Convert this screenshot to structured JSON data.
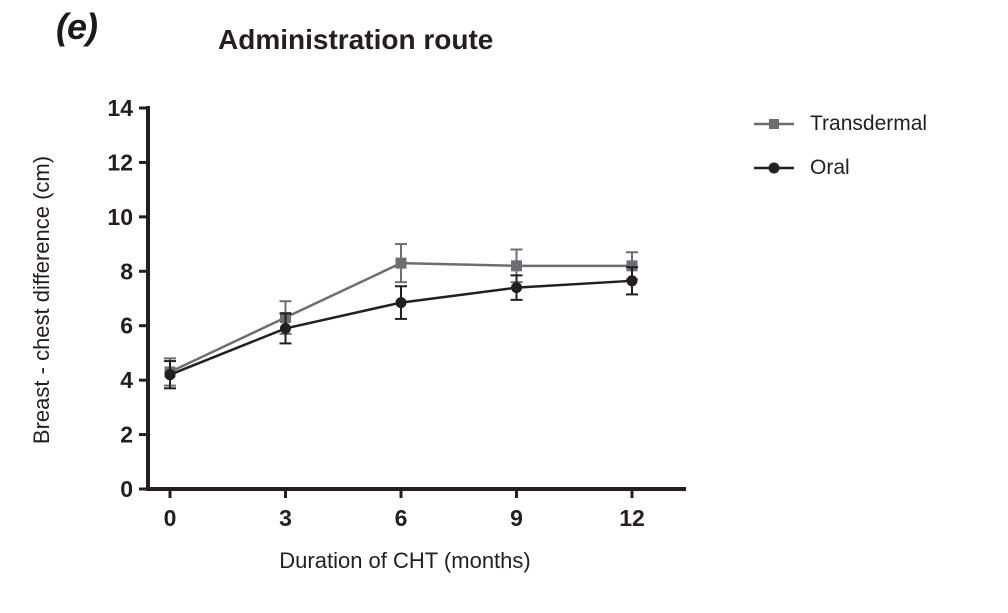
{
  "panel_label": "(e)",
  "chart_data": {
    "type": "line",
    "title": "Administration route",
    "xlabel": "Duration of CHT (months)",
    "ylabel": "Breast - chest difference (cm)",
    "x": [
      0,
      3,
      6,
      9,
      12
    ],
    "xticks": [
      0,
      3,
      6,
      9,
      12
    ],
    "yticks": [
      0,
      2,
      4,
      6,
      8,
      10,
      12,
      14
    ],
    "xlim": [
      0,
      12
    ],
    "ylim": [
      0,
      14
    ],
    "grid": false,
    "legend_position": "right",
    "error_bars": true,
    "axis_color": "#231f20",
    "series": [
      {
        "name": "Transdermal",
        "marker": "square",
        "color": "#6d6e71",
        "values": [
          4.3,
          6.3,
          8.3,
          8.2,
          8.2
        ],
        "errors": [
          0.5,
          0.6,
          0.7,
          0.6,
          0.5
        ]
      },
      {
        "name": "Oral",
        "marker": "circle",
        "color": "#231f20",
        "values": [
          4.2,
          5.9,
          6.85,
          7.4,
          7.65
        ],
        "errors": [
          0.5,
          0.55,
          0.6,
          0.45,
          0.5
        ]
      }
    ]
  }
}
